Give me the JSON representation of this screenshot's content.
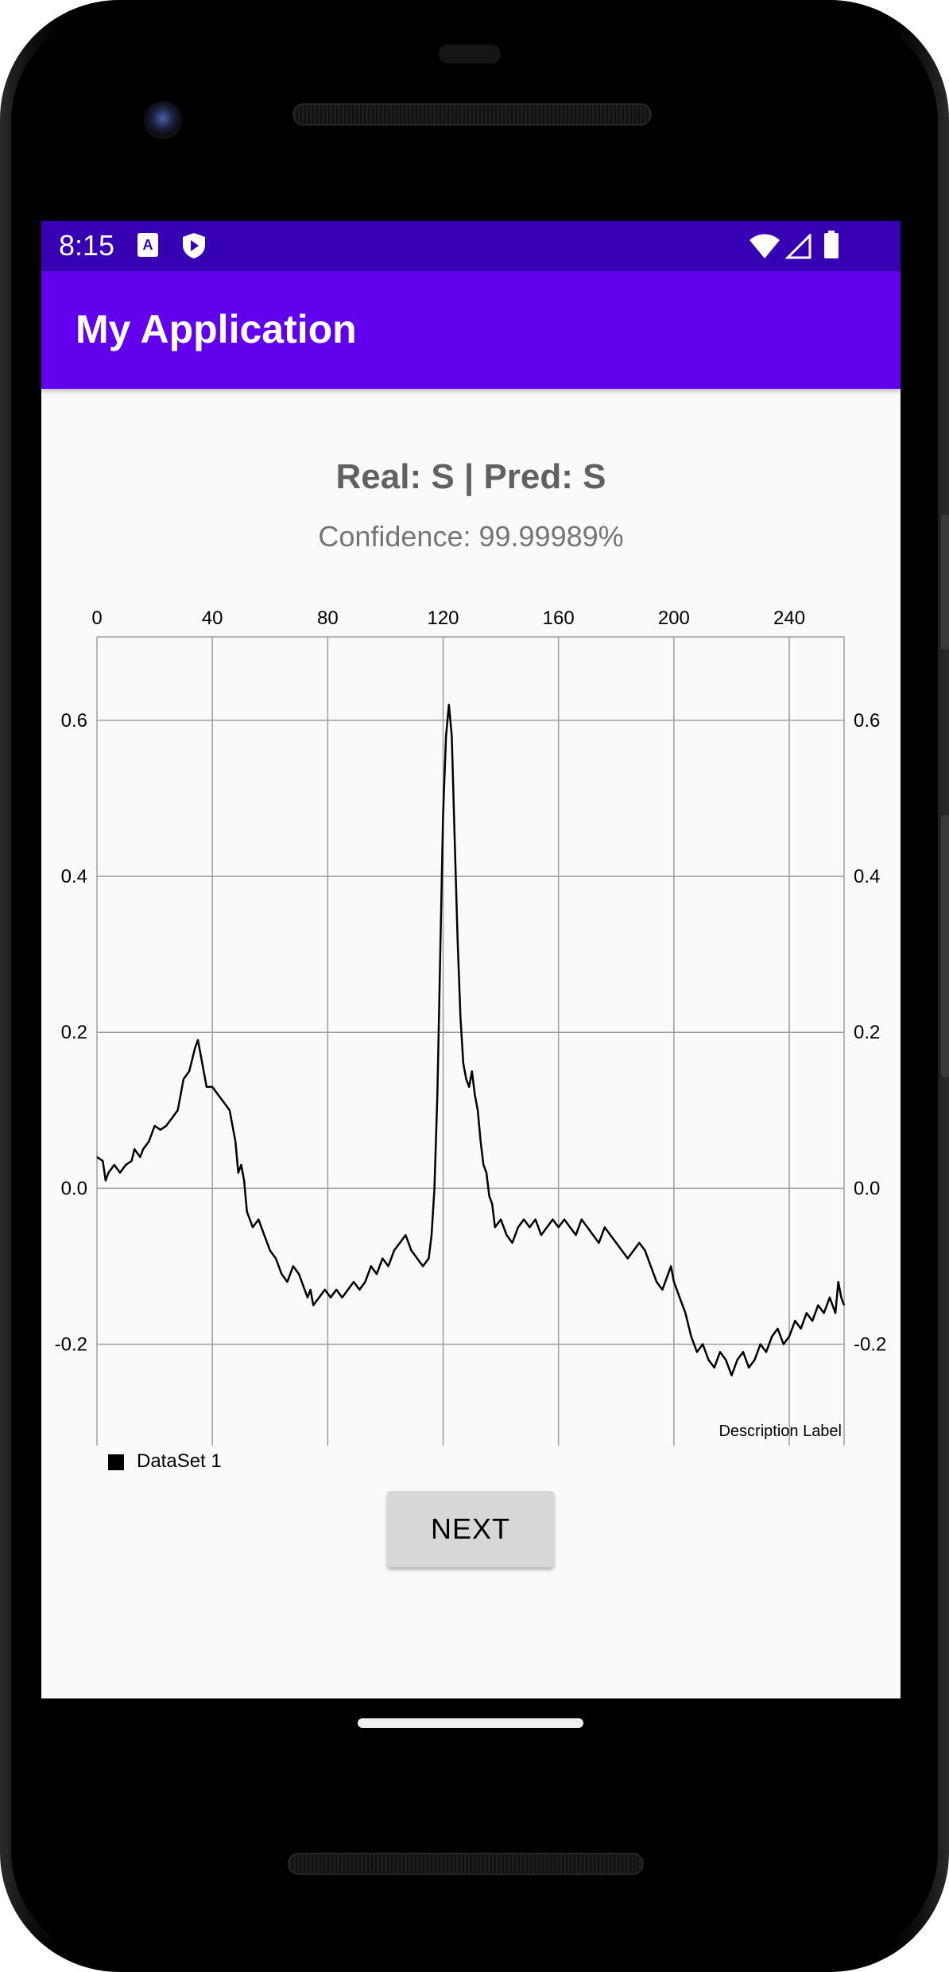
{
  "status_bar": {
    "time": "8:15",
    "icons": [
      "accessibility-a-icon",
      "shield-play-icon",
      "wifi-icon",
      "cell-signal-icon",
      "battery-icon"
    ]
  },
  "app_bar": {
    "title": "My Application"
  },
  "result": {
    "title": "Real: S | Pred: S",
    "confidence": "Confidence: 99.99989%"
  },
  "chart_data": {
    "type": "line",
    "title": "",
    "description_label": "Description Label",
    "x_ticks": [
      "0",
      "40",
      "80",
      "120",
      "160",
      "200",
      "240"
    ],
    "y_ticks": [
      "0.6",
      "0.4",
      "0.2",
      "0.0",
      "-0.2"
    ],
    "xlim": [
      0,
      259
    ],
    "ylim": [
      -0.33,
      0.707
    ],
    "x_axis_position": "top",
    "y_axis_labels": "left-and-right",
    "grid": true,
    "legend": "bottom-left",
    "line_color": "#000000",
    "series": [
      {
        "name": "DataSet 1",
        "points": [
          [
            0,
            0.04
          ],
          [
            2,
            0.035
          ],
          [
            3,
            0.01
          ],
          [
            4,
            0.02
          ],
          [
            6,
            0.03
          ],
          [
            8,
            0.02
          ],
          [
            10,
            0.03
          ],
          [
            12,
            0.035
          ],
          [
            13,
            0.05
          ],
          [
            15,
            0.04
          ],
          [
            16,
            0.05
          ],
          [
            18,
            0.06
          ],
          [
            20,
            0.08
          ],
          [
            22,
            0.075
          ],
          [
            24,
            0.08
          ],
          [
            26,
            0.09
          ],
          [
            28,
            0.1
          ],
          [
            29,
            0.12
          ],
          [
            30,
            0.14
          ],
          [
            32,
            0.15
          ],
          [
            34,
            0.18
          ],
          [
            35,
            0.19
          ],
          [
            36,
            0.17
          ],
          [
            38,
            0.13
          ],
          [
            40,
            0.13
          ],
          [
            42,
            0.12
          ],
          [
            44,
            0.11
          ],
          [
            46,
            0.1
          ],
          [
            48,
            0.06
          ],
          [
            49,
            0.02
          ],
          [
            50,
            0.03
          ],
          [
            51,
            0.01
          ],
          [
            52,
            -0.03
          ],
          [
            54,
            -0.05
          ],
          [
            56,
            -0.04
          ],
          [
            58,
            -0.06
          ],
          [
            60,
            -0.08
          ],
          [
            62,
            -0.09
          ],
          [
            64,
            -0.11
          ],
          [
            66,
            -0.12
          ],
          [
            68,
            -0.1
          ],
          [
            70,
            -0.11
          ],
          [
            72,
            -0.13
          ],
          [
            73,
            -0.14
          ],
          [
            74,
            -0.13
          ],
          [
            75,
            -0.15
          ],
          [
            77,
            -0.14
          ],
          [
            79,
            -0.13
          ],
          [
            81,
            -0.14
          ],
          [
            83,
            -0.13
          ],
          [
            85,
            -0.14
          ],
          [
            87,
            -0.13
          ],
          [
            89,
            -0.12
          ],
          [
            91,
            -0.13
          ],
          [
            93,
            -0.12
          ],
          [
            95,
            -0.1
          ],
          [
            97,
            -0.11
          ],
          [
            99,
            -0.09
          ],
          [
            101,
            -0.1
          ],
          [
            103,
            -0.08
          ],
          [
            105,
            -0.07
          ],
          [
            107,
            -0.06
          ],
          [
            109,
            -0.08
          ],
          [
            111,
            -0.09
          ],
          [
            113,
            -0.1
          ],
          [
            115,
            -0.09
          ],
          [
            116,
            -0.06
          ],
          [
            117,
            0.0
          ],
          [
            118,
            0.12
          ],
          [
            119,
            0.3
          ],
          [
            120,
            0.48
          ],
          [
            121,
            0.58
          ],
          [
            122,
            0.62
          ],
          [
            123,
            0.58
          ],
          [
            124,
            0.45
          ],
          [
            125,
            0.32
          ],
          [
            126,
            0.22
          ],
          [
            127,
            0.16
          ],
          [
            128,
            0.14
          ],
          [
            129,
            0.13
          ],
          [
            130,
            0.15
          ],
          [
            131,
            0.12
          ],
          [
            132,
            0.1
          ],
          [
            133,
            0.06
          ],
          [
            134,
            0.03
          ],
          [
            135,
            0.02
          ],
          [
            136,
            -0.01
          ],
          [
            137,
            -0.02
          ],
          [
            138,
            -0.05
          ],
          [
            140,
            -0.04
          ],
          [
            142,
            -0.06
          ],
          [
            144,
            -0.07
          ],
          [
            146,
            -0.05
          ],
          [
            148,
            -0.04
          ],
          [
            150,
            -0.05
          ],
          [
            152,
            -0.04
          ],
          [
            154,
            -0.06
          ],
          [
            156,
            -0.05
          ],
          [
            158,
            -0.04
          ],
          [
            160,
            -0.05
          ],
          [
            162,
            -0.04
          ],
          [
            164,
            -0.05
          ],
          [
            166,
            -0.06
          ],
          [
            168,
            -0.04
          ],
          [
            170,
            -0.05
          ],
          [
            172,
            -0.06
          ],
          [
            174,
            -0.07
          ],
          [
            176,
            -0.05
          ],
          [
            178,
            -0.06
          ],
          [
            180,
            -0.07
          ],
          [
            182,
            -0.08
          ],
          [
            184,
            -0.09
          ],
          [
            186,
            -0.08
          ],
          [
            188,
            -0.07
          ],
          [
            190,
            -0.08
          ],
          [
            192,
            -0.1
          ],
          [
            194,
            -0.12
          ],
          [
            196,
            -0.13
          ],
          [
            198,
            -0.11
          ],
          [
            199,
            -0.1
          ],
          [
            200,
            -0.12
          ],
          [
            202,
            -0.14
          ],
          [
            204,
            -0.16
          ],
          [
            206,
            -0.19
          ],
          [
            208,
            -0.21
          ],
          [
            210,
            -0.2
          ],
          [
            212,
            -0.22
          ],
          [
            214,
            -0.23
          ],
          [
            216,
            -0.21
          ],
          [
            218,
            -0.22
          ],
          [
            220,
            -0.24
          ],
          [
            222,
            -0.22
          ],
          [
            224,
            -0.21
          ],
          [
            226,
            -0.23
          ],
          [
            228,
            -0.22
          ],
          [
            230,
            -0.2
          ],
          [
            232,
            -0.21
          ],
          [
            234,
            -0.19
          ],
          [
            236,
            -0.18
          ],
          [
            238,
            -0.2
          ],
          [
            240,
            -0.19
          ],
          [
            242,
            -0.17
          ],
          [
            244,
            -0.18
          ],
          [
            246,
            -0.16
          ],
          [
            248,
            -0.17
          ],
          [
            250,
            -0.15
          ],
          [
            252,
            -0.16
          ],
          [
            254,
            -0.14
          ],
          [
            256,
            -0.16
          ],
          [
            257,
            -0.12
          ],
          [
            258,
            -0.14
          ],
          [
            259,
            -0.15
          ]
        ]
      }
    ]
  },
  "legend": {
    "label": "DataSet 1"
  },
  "actions": {
    "next_label": "NEXT"
  }
}
